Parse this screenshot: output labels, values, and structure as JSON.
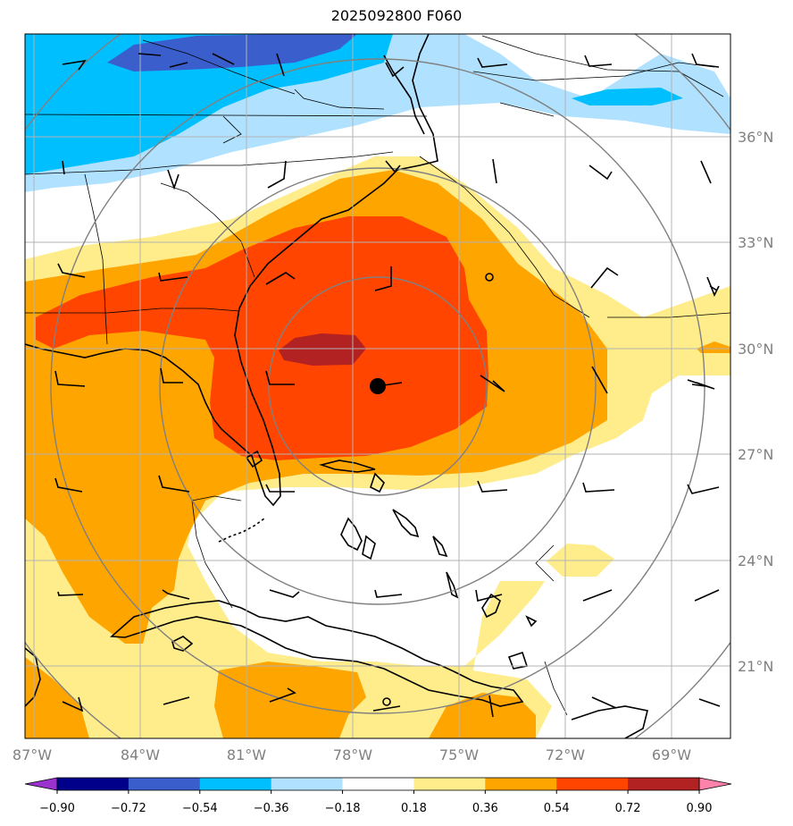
{
  "title": "2025092800 F060",
  "lat_labels": [
    "36°N",
    "33°N",
    "30°N",
    "27°N",
    "24°N",
    "21°N"
  ],
  "lon_labels": [
    "87°W",
    "84°W",
    "81°W",
    "78°W",
    "75°W",
    "72°W",
    "69°W"
  ],
  "colorbar": {
    "levels": [
      "−0.90",
      "−0.72",
      "−0.54",
      "−0.36",
      "−0.18",
      "0.18",
      "0.36",
      "0.54",
      "0.72",
      "0.90"
    ],
    "colors": [
      "#9a32cd",
      "#00008b",
      "#3a5fcd",
      "#00bfff",
      "#b0e2ff",
      "#ffffff",
      "#ffec8b",
      "#ffa500",
      "#ff4500",
      "#b22222",
      "#ff82ab"
    ]
  },
  "storm_center": {
    "lat": 28.9,
    "lon": -77.4,
    "symbol": "filled-circle"
  },
  "map_extent": {
    "lon": [
      -87.3,
      -67.7
    ],
    "lat": [
      19.0,
      38.8
    ]
  }
}
